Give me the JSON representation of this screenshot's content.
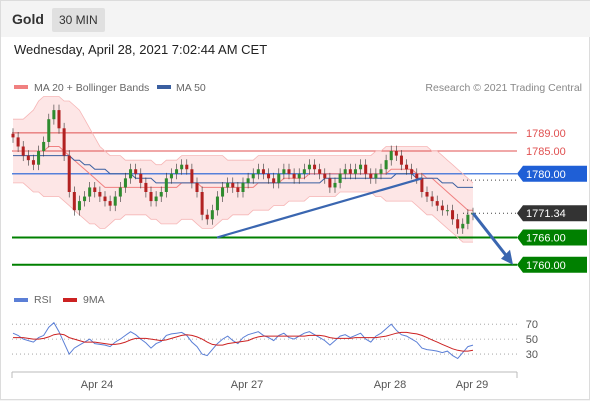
{
  "header": {
    "symbol": "Gold",
    "timeframe": "30 MIN"
  },
  "datetime": "Wednesday, April 28, 2021 7:02:44 AM CET",
  "colors": {
    "bollinger": "#f08080",
    "bb_fill": "#fde0e0",
    "ma50": "#3a5fa0",
    "candle_up": "#2e8b2e",
    "candle_down": "#b22222",
    "resistance": "#e05050",
    "pivot": "#1f5fd6",
    "support": "#008000",
    "last": "#333333",
    "trendline": "#3a66b0",
    "rsi": "#5b7fd6",
    "rsi_ma": "#cc2222"
  },
  "chart_data": [
    {
      "type": "candlestick",
      "legend": [
        "MA 20 + Bollinger Bands",
        "MA 50"
      ],
      "legend_placement": "top-left",
      "source": "Research © 2021 Trading Central",
      "x_ticks": [
        "Apr 24",
        "Apr 27",
        "Apr 28",
        "Apr 29"
      ],
      "y_range": [
        1756,
        1796
      ],
      "price_levels": [
        {
          "label": "1789.00",
          "value": 1789.0,
          "kind": "resistance"
        },
        {
          "label": "1785.00",
          "value": 1785.0,
          "kind": "resistance"
        },
        {
          "label": "1780.00",
          "value": 1780.0,
          "kind": "pivot"
        },
        {
          "label": "1771.34",
          "value": 1771.34,
          "kind": "last"
        },
        {
          "label": "1766.00",
          "value": 1766.0,
          "kind": "support"
        },
        {
          "label": "1760.00",
          "value": 1760.0,
          "kind": "support"
        }
      ],
      "close_series": [
        1788,
        1786,
        1784,
        1783,
        1782,
        1785,
        1787,
        1792,
        1794,
        1790,
        1784,
        1776,
        1772,
        1774,
        1775,
        1777,
        1776,
        1775,
        1774,
        1773,
        1775,
        1777,
        1779,
        1781,
        1780,
        1778,
        1776,
        1774,
        1775,
        1776,
        1779,
        1780,
        1781,
        1782,
        1781,
        1778,
        1776,
        1771,
        1770,
        1772,
        1775,
        1777,
        1778,
        1777,
        1776,
        1778,
        1779,
        1780,
        1781,
        1780,
        1779,
        1778,
        1780,
        1781,
        1780,
        1779,
        1780,
        1781,
        1782,
        1781,
        1780,
        1779,
        1777,
        1778,
        1780,
        1781,
        1780,
        1781,
        1782,
        1780,
        1779,
        1780,
        1781,
        1783,
        1785,
        1784,
        1782,
        1781,
        1780,
        1779,
        1776,
        1775,
        1774,
        1773,
        1772,
        1772,
        1770,
        1768,
        1769,
        1771,
        1771.34
      ],
      "ma20_series": [
        1785,
        1785,
        1785,
        1785,
        1785,
        1785,
        1785,
        1786,
        1786,
        1786,
        1785,
        1784,
        1783,
        1782,
        1781,
        1780,
        1779,
        1778,
        1777,
        1777,
        1777,
        1777,
        1777,
        1777,
        1777,
        1777,
        1777,
        1777,
        1777,
        1777,
        1777,
        1777,
        1777,
        1778,
        1778,
        1778,
        1778,
        1777,
        1777,
        1777,
        1777,
        1777,
        1777,
        1777,
        1777,
        1777,
        1777,
        1777,
        1778,
        1778,
        1778,
        1778,
        1778,
        1779,
        1779,
        1779,
        1779,
        1779,
        1780,
        1780,
        1780,
        1780,
        1780,
        1780,
        1780,
        1780,
        1780,
        1780,
        1780,
        1780,
        1780,
        1780,
        1780,
        1780,
        1781,
        1781,
        1781,
        1781,
        1781,
        1780,
        1780,
        1779,
        1779,
        1778,
        1777,
        1776,
        1775,
        1774,
        1773,
        1772,
        1772
      ],
      "bb_upper": [
        1792,
        1792,
        1792,
        1793,
        1794,
        1796,
        1797,
        1797,
        1797,
        1797,
        1796,
        1796,
        1795,
        1794,
        1792,
        1790,
        1788,
        1786,
        1785,
        1784,
        1784,
        1784,
        1783,
        1783,
        1783,
        1783,
        1783,
        1783,
        1782,
        1782,
        1783,
        1783,
        1783,
        1784,
        1784,
        1784,
        1784,
        1784,
        1784,
        1784,
        1784,
        1784,
        1783,
        1783,
        1783,
        1783,
        1783,
        1783,
        1784,
        1784,
        1784,
        1784,
        1784,
        1784,
        1784,
        1784,
        1784,
        1784,
        1784,
        1784,
        1784,
        1784,
        1784,
        1784,
        1784,
        1784,
        1784,
        1784,
        1784,
        1784,
        1784,
        1785,
        1785,
        1786,
        1786,
        1786,
        1786,
        1786,
        1786,
        1786,
        1786,
        1786,
        1785,
        1785,
        1784,
        1783,
        1782,
        1781,
        1780,
        1779,
        1778
      ],
      "bb_lower": [
        1778,
        1778,
        1778,
        1777,
        1776,
        1776,
        1775,
        1775,
        1775,
        1775,
        1774,
        1773,
        1772,
        1771,
        1770,
        1769,
        1769,
        1768,
        1768,
        1769,
        1770,
        1770,
        1771,
        1771,
        1771,
        1771,
        1771,
        1770,
        1770,
        1769,
        1769,
        1769,
        1769,
        1770,
        1770,
        1770,
        1769,
        1768,
        1768,
        1768,
        1769,
        1770,
        1770,
        1771,
        1771,
        1771,
        1771,
        1772,
        1772,
        1772,
        1772,
        1773,
        1773,
        1773,
        1774,
        1774,
        1774,
        1774,
        1775,
        1775,
        1775,
        1775,
        1775,
        1775,
        1776,
        1776,
        1776,
        1776,
        1776,
        1776,
        1776,
        1775,
        1775,
        1774,
        1774,
        1774,
        1774,
        1774,
        1774,
        1773,
        1772,
        1771,
        1771,
        1770,
        1769,
        1768,
        1767,
        1766,
        1765,
        1765,
        1765
      ],
      "ma50_series": [
        1784,
        1784,
        1784,
        1784,
        1784,
        1784,
        1784,
        1784,
        1784,
        1784,
        1784,
        1784,
        1783,
        1783,
        1782,
        1782,
        1781,
        1781,
        1781,
        1780,
        1780,
        1780,
        1780,
        1780,
        1779,
        1779,
        1779,
        1779,
        1778,
        1778,
        1778,
        1778,
        1778,
        1778,
        1778,
        1778,
        1778,
        1778,
        1778,
        1778,
        1778,
        1778,
        1778,
        1778,
        1778,
        1778,
        1778,
        1778,
        1778,
        1778,
        1778,
        1778,
        1778,
        1778,
        1778,
        1778,
        1778,
        1778,
        1778,
        1778,
        1778,
        1779,
        1779,
        1779,
        1779,
        1779,
        1779,
        1779,
        1779,
        1779,
        1779,
        1779,
        1779,
        1779,
        1779,
        1780,
        1780,
        1780,
        1780,
        1779,
        1779,
        1779,
        1779,
        1779,
        1778,
        1778,
        1778,
        1777,
        1777,
        1777,
        1777
      ],
      "trendline": {
        "from": 1766,
        "to": 1779
      },
      "arrow": {
        "from": 1771.34,
        "to": 1760
      }
    },
    {
      "type": "line",
      "legend": [
        "RSI",
        "9MA"
      ],
      "y_ticks": [
        "70",
        "50",
        "30"
      ],
      "y_range": [
        10,
        85
      ],
      "rsi_series": [
        58,
        55,
        50,
        48,
        46,
        52,
        55,
        66,
        72,
        60,
        45,
        30,
        38,
        42,
        46,
        50,
        44,
        43,
        42,
        40,
        46,
        50,
        55,
        60,
        56,
        50,
        45,
        38,
        44,
        47,
        55,
        57,
        58,
        59,
        55,
        46,
        40,
        30,
        28,
        36,
        44,
        50,
        54,
        48,
        44,
        52,
        56,
        58,
        60,
        55,
        52,
        48,
        55,
        58,
        52,
        50,
        54,
        58,
        60,
        56,
        52,
        48,
        42,
        48,
        54,
        56,
        52,
        55,
        58,
        50,
        46,
        54,
        58,
        64,
        70,
        62,
        56,
        54,
        50,
        46,
        38,
        36,
        35,
        34,
        32,
        34,
        28,
        24,
        32,
        40,
        42
      ],
      "rsi_ma_series": [
        52,
        52,
        52,
        51,
        50,
        50,
        51,
        53,
        56,
        57,
        56,
        52,
        50,
        48,
        46,
        46,
        46,
        45,
        44,
        43,
        43,
        44,
        46,
        49,
        51,
        51,
        51,
        50,
        49,
        48,
        49,
        51,
        53,
        55,
        56,
        55,
        53,
        50,
        46,
        43,
        42,
        42,
        44,
        45,
        46,
        47,
        48,
        51,
        53,
        54,
        54,
        54,
        54,
        54,
        54,
        54,
        54,
        54,
        55,
        55,
        55,
        54,
        52,
        51,
        51,
        51,
        51,
        52,
        52,
        52,
        52,
        52,
        53,
        54,
        56,
        58,
        59,
        59,
        58,
        57,
        55,
        52,
        49,
        46,
        43,
        40,
        37,
        35,
        34,
        34,
        35
      ]
    }
  ]
}
